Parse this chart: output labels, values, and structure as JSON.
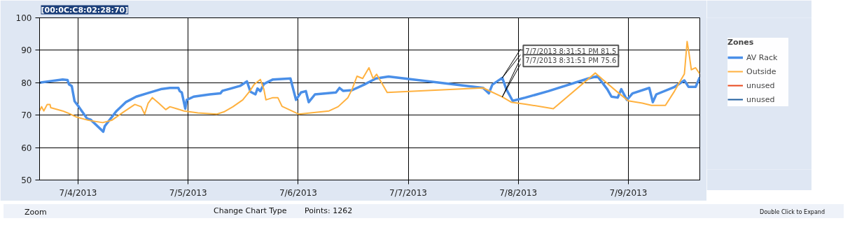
{
  "chart_data": {
    "type": "line",
    "title": "[00:0C:C8:02:28:70]",
    "legend_title": "Zones",
    "legend": "right",
    "grid": true,
    "xlim": [
      "2013-07-03T15:36",
      "2013-07-09T15:36"
    ],
    "ylim": [
      50,
      100
    ],
    "yticks": [
      50,
      60,
      70,
      80,
      90,
      100
    ],
    "xticks": [
      {
        "value": "2013-07-04",
        "label": "7/4/2013"
      },
      {
        "value": "2013-07-05",
        "label": "7/5/2013"
      },
      {
        "value": "2013-07-06",
        "label": "7/6/2013"
      },
      {
        "value": "2013-07-07",
        "label": "7/7/2013"
      },
      {
        "value": "2013-07-08",
        "label": "7/8/2013"
      },
      {
        "value": "2013-07-09",
        "label": "7/9/2013"
      }
    ],
    "series": [
      {
        "name": "AV Rack",
        "color": "#4a8fe8",
        "x": [
          "2013-07-03T15:36",
          "2013-07-03T20:38",
          "2013-07-03T21:42",
          "2013-07-03T22:01",
          "2013-07-03T22:37",
          "2013-07-03T23:14",
          "2013-07-04T00:09",
          "2013-07-04T01:59",
          "2013-07-04T02:45",
          "2013-07-04T05:30",
          "2013-07-04T05:49",
          "2013-07-04T08:24",
          "2013-07-04T10:24",
          "2013-07-04T12:41",
          "2013-07-04T14:59",
          "2013-07-04T18:02",
          "2013-07-04T20:02",
          "2013-07-04T21:52",
          "2013-07-04T22:10",
          "2013-07-04T22:37",
          "2013-07-04T23:23",
          "2013-07-04T23:42",
          "2013-07-05T01:13",
          "2013-07-05T04:44",
          "2013-07-05T07:02",
          "2013-07-05T07:29",
          "2013-07-05T09:19",
          "2013-07-05T11:19",
          "2013-07-05T12:50",
          "2013-07-05T13:36",
          "2013-07-05T14:41",
          "2013-07-05T15:08",
          "2013-07-05T15:45",
          "2013-07-05T16:31",
          "2013-07-05T18:30",
          "2013-07-05T22:19",
          "2013-07-05T23:32",
          "2013-07-06T00:37",
          "2013-07-06T01:41",
          "2013-07-06T02:18",
          "2013-07-06T03:40",
          "2013-07-06T08:15",
          "2013-07-06T09:01",
          "2013-07-06T09:47",
          "2013-07-06T11:46",
          "2013-07-06T14:22",
          "2013-07-06T16:58",
          "2013-07-06T19:43",
          "2013-07-07T16:21",
          "2013-07-07T17:35",
          "2013-07-07T18:21",
          "2013-07-07T20:31",
          "2013-07-07T21:24",
          "2013-07-07T22:47",
          "2013-07-08T01:32",
          "2013-07-08T06:34",
          "2013-07-08T15:17",
          "2013-07-08T17:16",
          "2013-07-08T19:25",
          "2013-07-08T20:20",
          "2013-07-08T21:42",
          "2013-07-08T22:28",
          "2013-07-08T23:42",
          "2013-07-09T00:55",
          "2013-07-09T04:35",
          "2013-07-09T05:21",
          "2013-07-09T06:07",
          "2013-07-09T10:05",
          "2013-07-09T12:14",
          "2013-07-09T13:09",
          "2013-07-09T14:41",
          "2013-07-09T15:36"
        ],
        "values": [
          80.0,
          81.0,
          80.8,
          79.5,
          79.0,
          74.3,
          72.6,
          68.9,
          68.6,
          64.9,
          66.6,
          71.3,
          74.0,
          75.7,
          76.7,
          78.0,
          78.4,
          78.4,
          77.4,
          77.0,
          72.0,
          74.7,
          75.7,
          76.4,
          76.7,
          77.5,
          78.2,
          79.0,
          80.4,
          77.2,
          76.4,
          78.2,
          77.4,
          79.6,
          81.0,
          81.3,
          74.7,
          77.0,
          77.4,
          74.0,
          76.4,
          77.0,
          78.4,
          77.5,
          77.7,
          79.4,
          81.3,
          81.9,
          78.4,
          76.7,
          79.4,
          81.5,
          78.0,
          74.4,
          75.4,
          77.4,
          81.3,
          82.0,
          78.0,
          75.7,
          75.4,
          78.0,
          74.7,
          76.7,
          78.4,
          74.0,
          76.4,
          78.7,
          80.7,
          78.7,
          78.7,
          81.7
        ]
      },
      {
        "name": "Outside",
        "color": "#ffb13f",
        "x": [
          "2013-07-03T15:36",
          "2013-07-03T16:03",
          "2013-07-03T16:31",
          "2013-07-03T17:16",
          "2013-07-03T17:53",
          "2013-07-03T18:02",
          "2013-07-03T20:38",
          "2013-07-03T21:42",
          "2013-07-03T23:42",
          "2013-07-04T02:18",
          "2013-07-04T05:21",
          "2013-07-04T07:20",
          "2013-07-04T09:56",
          "2013-07-04T12:23",
          "2013-07-04T13:45",
          "2013-07-04T14:31",
          "2013-07-04T15:17",
          "2013-07-04T16:12",
          "2013-07-04T17:35",
          "2013-07-04T19:07",
          "2013-07-04T20:02",
          "2013-07-04T23:05",
          "2013-07-05T02:08",
          "2013-07-05T06:16",
          "2013-07-05T07:48",
          "2013-07-05T09:47",
          "2013-07-05T11:55",
          "2013-07-05T13:27",
          "2013-07-05T14:22",
          "2013-07-05T15:45",
          "2013-07-05T16:31",
          "2013-07-05T16:58",
          "2013-07-05T18:30",
          "2013-07-05T19:34",
          "2013-07-05T20:29",
          "2013-07-05T22:37",
          "2013-07-06T00:09",
          "2013-07-06T06:44",
          "2013-07-06T08:43",
          "2013-07-06T10:51",
          "2013-07-06T11:46",
          "2013-07-06T12:50",
          "2013-07-06T14:04",
          "2013-07-06T15:26",
          "2013-07-06T16:21",
          "2013-07-06T17:07",
          "2013-07-06T19:25",
          "2013-07-07T16:21",
          "2013-07-07T20:31",
          "2013-07-07T22:28",
          "2013-07-08T01:32",
          "2013-07-08T07:39",
          "2013-07-08T16:49",
          "2013-07-08T18:39",
          "2013-07-08T21:24",
          "2013-07-09T00:00",
          "2013-07-09T03:03",
          "2013-07-09T05:03",
          "2013-07-09T08:06",
          "2013-07-09T10:05",
          "2013-07-09T12:14",
          "2013-07-09T12:50",
          "2013-07-09T13:09",
          "2013-07-09T13:45",
          "2013-07-09T14:41",
          "2013-07-09T15:36"
        ],
        "values": [
          71.3,
          72.6,
          71.3,
          73.3,
          73.3,
          72.3,
          71.3,
          70.7,
          69.4,
          68.4,
          67.7,
          68.4,
          71.0,
          73.3,
          72.6,
          70.3,
          73.7,
          75.4,
          73.7,
          71.7,
          72.6,
          71.3,
          70.7,
          70.3,
          71.0,
          72.6,
          74.7,
          77.4,
          79.4,
          81.0,
          78.0,
          74.7,
          75.4,
          75.4,
          72.7,
          71.3,
          70.3,
          71.3,
          72.6,
          75.4,
          78.0,
          82.0,
          81.3,
          84.6,
          81.3,
          82.6,
          77.0,
          78.4,
          75.6,
          74.0,
          73.4,
          72.0,
          83.0,
          80.7,
          77.4,
          74.4,
          73.7,
          73.0,
          73.0,
          77.4,
          82.7,
          92.7,
          90.0,
          84.0,
          84.6,
          82.7
        ]
      },
      {
        "name": "unused",
        "color": "#e8481c"
      },
      {
        "name": "unused",
        "color": "#1f5f9e"
      }
    ],
    "annotations": [
      {
        "text": "7/7/2013 8:31:51 PM 81.5",
        "x": "2013-07-07T20:31",
        "y": 81.5
      },
      {
        "text": "7/7/2013 8:31:51 PM 75.6",
        "x": "2013-07-07T20:31",
        "y": 75.6
      },
      "Zoom",
      "Change Chart Type",
      "Points: 1262",
      "Double Click to Expand"
    ]
  }
}
